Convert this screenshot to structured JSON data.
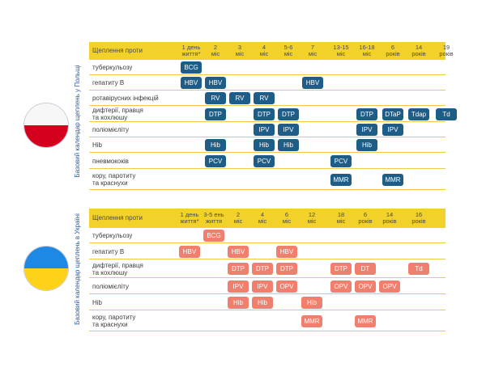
{
  "colors": {
    "header_bg": "#f2d22a",
    "row_line": "#f2c94c",
    "poland_badge": "#1d5d87",
    "ukraine_badge": "#f07f6e",
    "label_blue": "#2f5fa7",
    "flag_white": "#f7f7f7",
    "flag_red": "#d4001e",
    "flag_blue": "#1e88e5",
    "flag_yellow": "#ffd21a"
  },
  "poland": {
    "side_label": "Базовий календар щеплень у Польщі",
    "header_first": "Щеплення проти",
    "ages": [
      [
        "1 день",
        "життя*"
      ],
      [
        "2",
        "міс"
      ],
      [
        "3",
        "міс"
      ],
      [
        "4",
        "міс"
      ],
      [
        "5-6",
        "міс"
      ],
      [
        "7",
        "міс"
      ],
      [
        "13-15",
        "міс"
      ],
      [
        "16-18",
        "міс"
      ],
      [
        "6",
        "років"
      ],
      [
        "14",
        "років"
      ],
      [
        "19",
        "років"
      ]
    ],
    "rows": [
      {
        "label": [
          "туберкульозу"
        ],
        "badges": [
          {
            "col": 0,
            "text": "BCG"
          }
        ]
      },
      {
        "label": [
          "гепатиту В"
        ],
        "badges": [
          {
            "col": 0,
            "text": "HBV"
          },
          {
            "col": 1,
            "text": "HBV"
          },
          {
            "col": 5,
            "text": "HBV"
          }
        ]
      },
      {
        "label": [
          "ротавірусних інфекцій"
        ],
        "badges": [
          {
            "col": 1,
            "text": "RV"
          },
          {
            "col": 2,
            "text": "RV"
          },
          {
            "col": 3,
            "text": "RV"
          }
        ]
      },
      {
        "label": [
          "дифтерії, правця",
          "та кохлюшу"
        ],
        "badges": [
          {
            "col": 1,
            "text": "DTP"
          },
          {
            "col": 3,
            "text": "DTP"
          },
          {
            "col": 4,
            "text": "DTP"
          },
          {
            "col": 7,
            "text": "DTP"
          },
          {
            "col": 8,
            "text": "DTaP"
          },
          {
            "col": 9,
            "text": "Tdap"
          },
          {
            "col": 10,
            "text": "Td"
          }
        ]
      },
      {
        "label": [
          "поліомієліту"
        ],
        "badges": [
          {
            "col": 3,
            "text": "IPV"
          },
          {
            "col": 4,
            "text": "IPV"
          },
          {
            "col": 7,
            "text": "IPV"
          },
          {
            "col": 8,
            "text": "IPV"
          }
        ]
      },
      {
        "label": [
          "Hib"
        ],
        "badges": [
          {
            "col": 1,
            "text": "Hib"
          },
          {
            "col": 3,
            "text": "Hib"
          },
          {
            "col": 4,
            "text": "Hib"
          },
          {
            "col": 7,
            "text": "Hib"
          }
        ]
      },
      {
        "label": [
          "пневмококів"
        ],
        "badges": [
          {
            "col": 1,
            "text": "PCV"
          },
          {
            "col": 3,
            "text": "PCV"
          },
          {
            "col": 6,
            "text": "PCV"
          }
        ]
      },
      {
        "label": [
          "кору, паротиту",
          "та краснухи"
        ],
        "badges": [
          {
            "col": 6,
            "text": "MMR"
          },
          {
            "col": 8,
            "text": "MMR"
          }
        ]
      }
    ]
  },
  "ukraine": {
    "side_label": "Базовий календар щеплень в Україні",
    "header_first": "Щеплення проти",
    "ages": [
      [
        "1 день",
        "життя*"
      ],
      [
        "3-5 ень",
        "життя"
      ],
      [
        "2",
        "міс"
      ],
      [
        "4",
        "міс"
      ],
      [
        "6",
        "міс"
      ],
      [
        "12",
        "міс"
      ],
      [
        "18",
        "міс"
      ],
      [
        "6",
        "років"
      ],
      [
        "14",
        "років"
      ],
      [
        "16",
        "років"
      ]
    ],
    "rows": [
      {
        "label": [
          "туберкульозу"
        ],
        "badges": [
          {
            "col": 1,
            "text": "BCG"
          }
        ]
      },
      {
        "label": [
          "гепатиту В"
        ],
        "badges": [
          {
            "col": 0,
            "text": "HBV"
          },
          {
            "col": 2,
            "text": "HBV"
          },
          {
            "col": 4,
            "text": "HBV"
          }
        ]
      },
      {
        "label": [
          "дифтерії, правця",
          "та кохлюшу"
        ],
        "badges": [
          {
            "col": 2,
            "text": "DTP"
          },
          {
            "col": 3,
            "text": "DTP"
          },
          {
            "col": 4,
            "text": "DTP"
          },
          {
            "col": 6,
            "text": "DTP"
          },
          {
            "col": 7,
            "text": "DT"
          },
          {
            "col": 9,
            "text": "Td"
          }
        ]
      },
      {
        "label": [
          "поліомієліту"
        ],
        "badges": [
          {
            "col": 2,
            "text": "IPV"
          },
          {
            "col": 3,
            "text": "IPV"
          },
          {
            "col": 4,
            "text": "OPV"
          },
          {
            "col": 6,
            "text": "OPV"
          },
          {
            "col": 7,
            "text": "OPV"
          },
          {
            "col": 8,
            "text": "OPV"
          }
        ]
      },
      {
        "label": [
          "Hib"
        ],
        "badges": [
          {
            "col": 2,
            "text": "Hib"
          },
          {
            "col": 3,
            "text": "Hib"
          },
          {
            "col": 5,
            "text": "Hib"
          }
        ]
      },
      {
        "label": [
          "кору, паротиту",
          "та краснухи"
        ],
        "badges": [
          {
            "col": 5,
            "text": "MMR"
          },
          {
            "col": 7,
            "text": "MMR"
          }
        ]
      }
    ]
  }
}
